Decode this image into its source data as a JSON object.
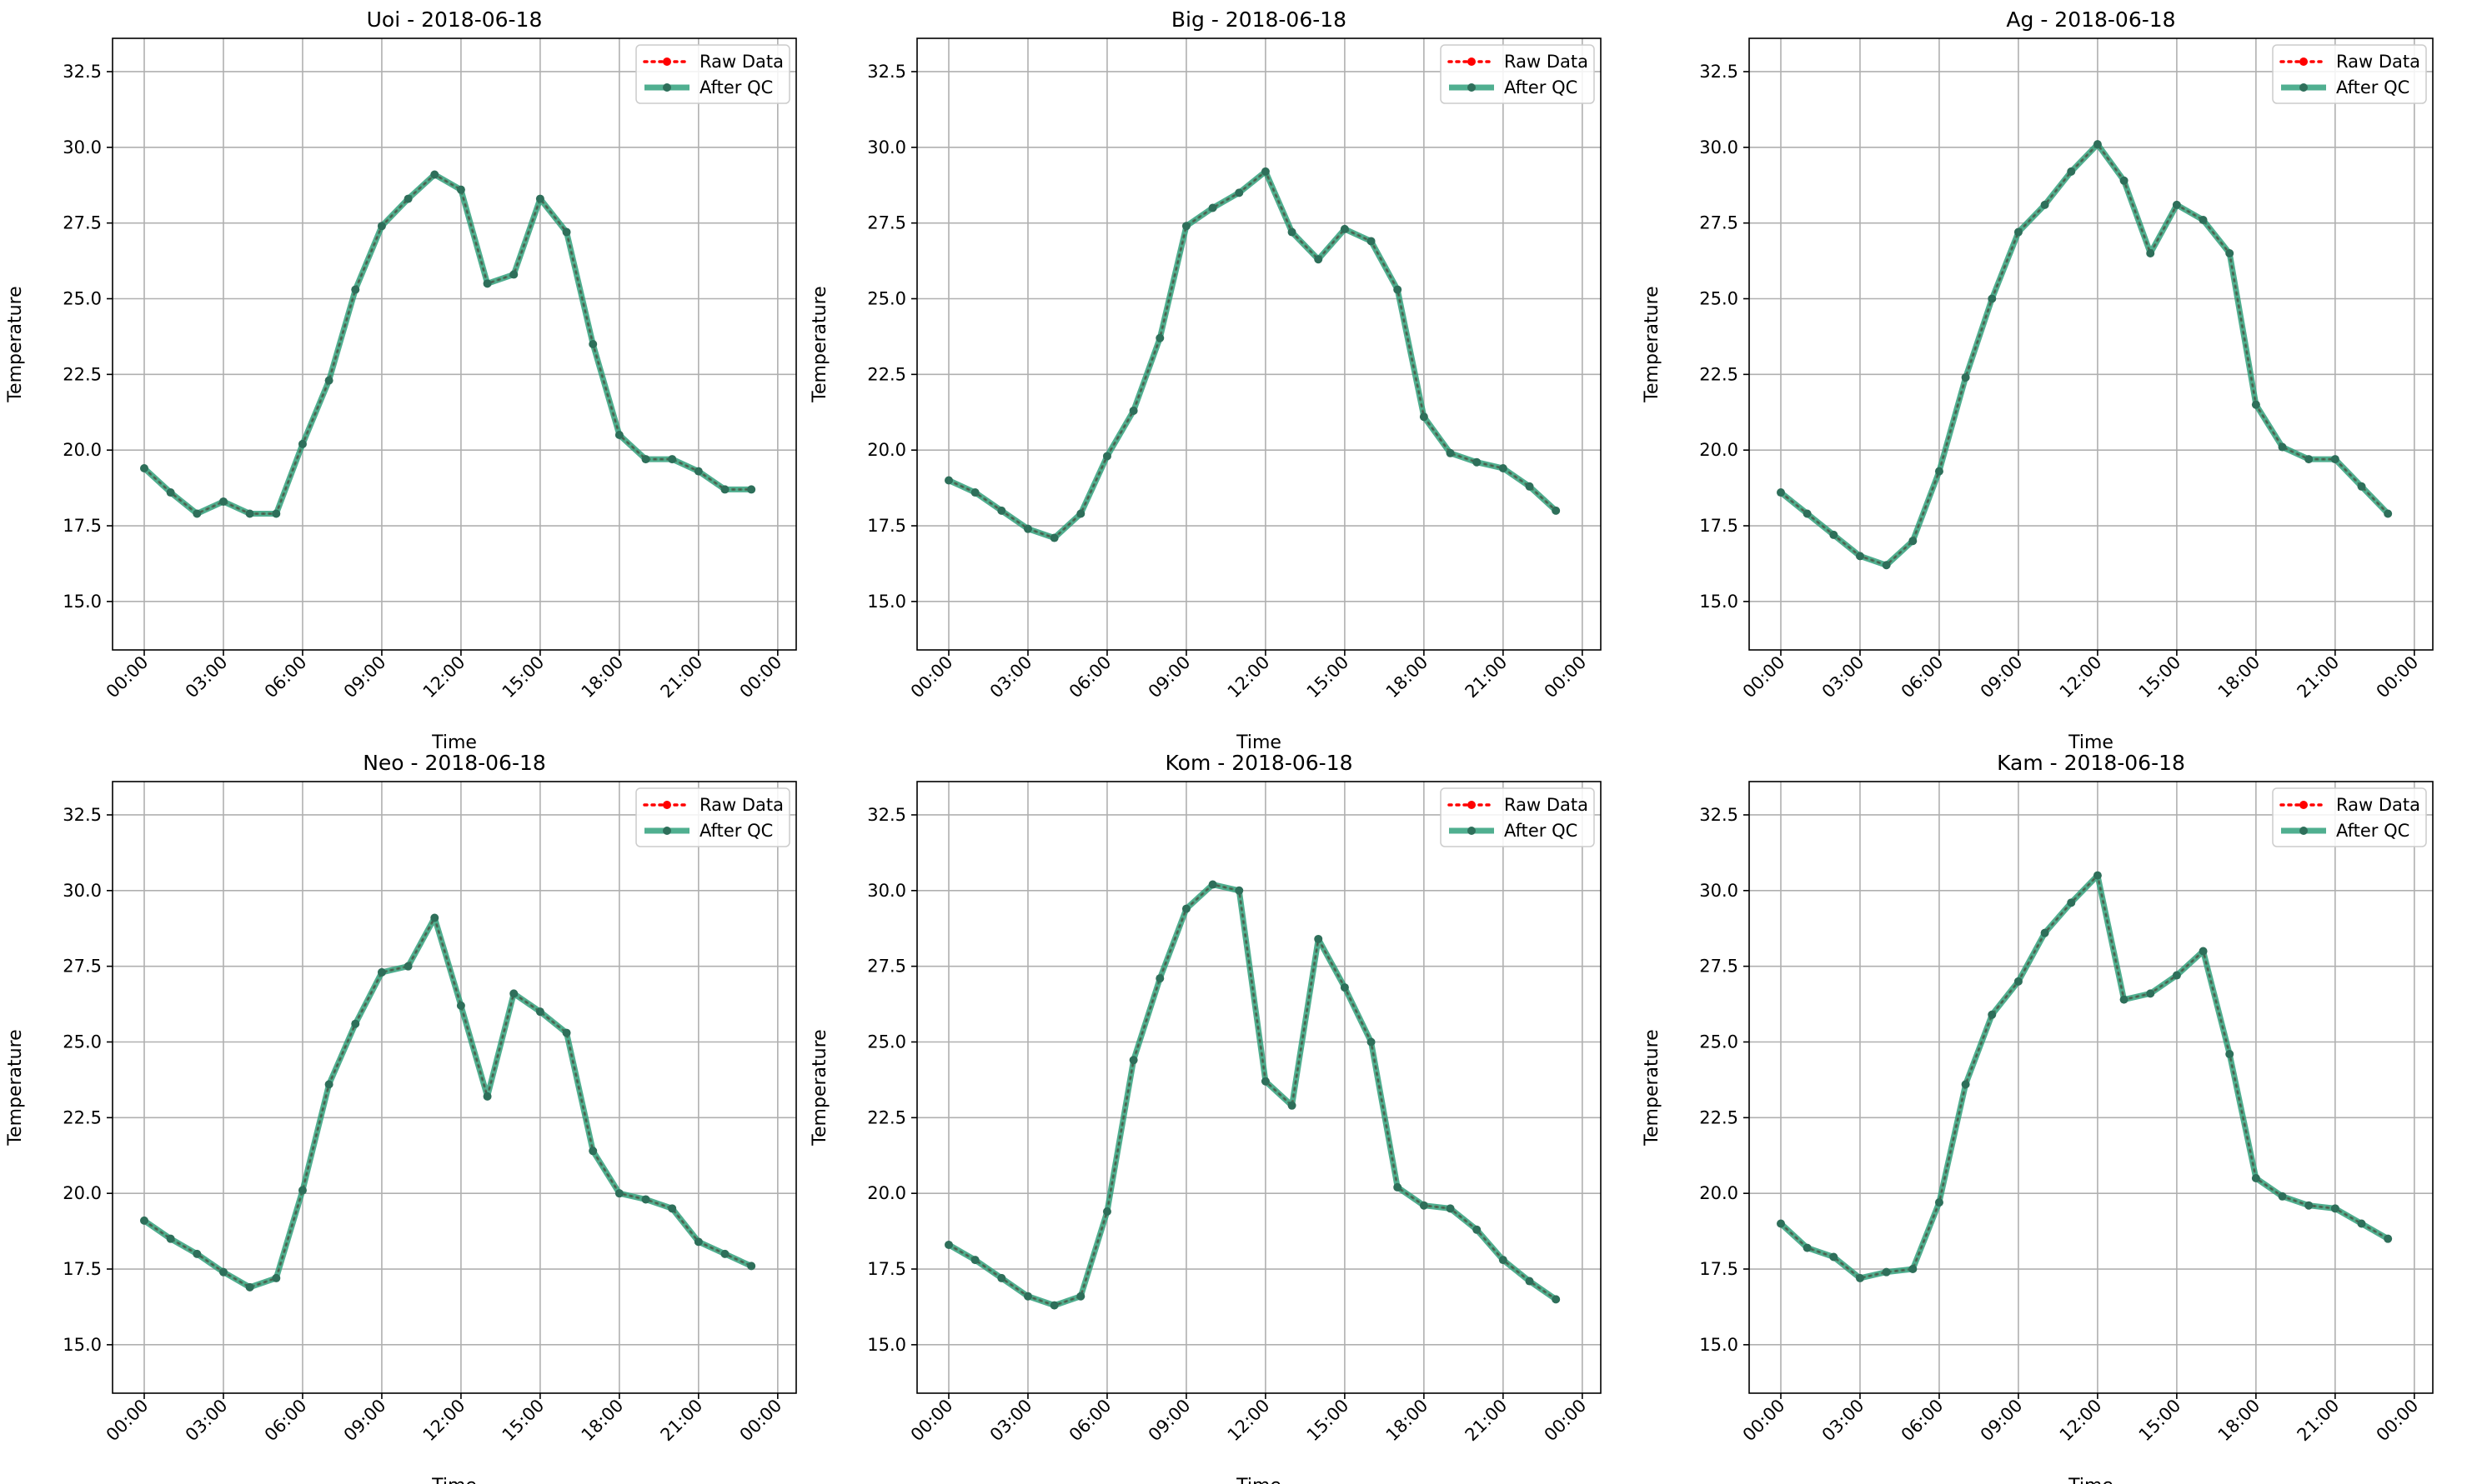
{
  "chart_data": [
    {
      "type": "line",
      "title": "Uoi - 2018-06-18",
      "xlabel": "Time",
      "ylabel": "Temperature",
      "xlim": [
        -1.2,
        24.7
      ],
      "ylim": [
        13.4,
        33.6
      ],
      "x": [
        0,
        1,
        2,
        3,
        4,
        5,
        6,
        7,
        8,
        9,
        10,
        11,
        12,
        13,
        14,
        15,
        16,
        17,
        18,
        19,
        20,
        21,
        22,
        23
      ],
      "x_ticks": [
        0,
        3,
        6,
        9,
        12,
        15,
        18,
        21,
        24
      ],
      "x_tick_labels": [
        "00:00",
        "03:00",
        "06:00",
        "09:00",
        "12:00",
        "15:00",
        "18:00",
        "21:00",
        "00:00"
      ],
      "y_ticks": [
        15.0,
        17.5,
        20.0,
        22.5,
        25.0,
        27.5,
        30.0,
        32.5
      ],
      "y_tick_labels": [
        "15.0",
        "17.5",
        "20.0",
        "22.5",
        "25.0",
        "27.5",
        "30.0",
        "32.5"
      ],
      "grid": true,
      "legend_position": "top-right",
      "series": [
        {
          "name": "Raw Data",
          "color": "#ff0000",
          "style": "dotted",
          "values": [
            19.4,
            18.6,
            17.9,
            18.3,
            17.9,
            17.9,
            20.2,
            22.3,
            25.3,
            27.4,
            28.3,
            29.1,
            28.6,
            25.5,
            25.8,
            28.3,
            27.2,
            23.5,
            20.5,
            19.7,
            19.7,
            19.3,
            18.7,
            18.7
          ]
        },
        {
          "name": "After QC",
          "color": "#2a9d78",
          "style": "solid",
          "values": [
            19.4,
            18.6,
            17.9,
            18.3,
            17.9,
            17.9,
            20.2,
            22.3,
            25.3,
            27.4,
            28.3,
            29.1,
            28.6,
            25.5,
            25.8,
            28.3,
            27.2,
            23.5,
            20.5,
            19.7,
            19.7,
            19.3,
            18.7,
            18.7
          ]
        }
      ]
    },
    {
      "type": "line",
      "title": "Big - 2018-06-18",
      "xlabel": "Time",
      "ylabel": "Temperature",
      "xlim": [
        -1.2,
        24.7
      ],
      "ylim": [
        13.4,
        33.6
      ],
      "x": [
        0,
        1,
        2,
        3,
        4,
        5,
        6,
        7,
        8,
        9,
        10,
        11,
        12,
        13,
        14,
        15,
        16,
        17,
        18,
        19,
        20,
        21,
        22,
        23
      ],
      "x_ticks": [
        0,
        3,
        6,
        9,
        12,
        15,
        18,
        21,
        24
      ],
      "x_tick_labels": [
        "00:00",
        "03:00",
        "06:00",
        "09:00",
        "12:00",
        "15:00",
        "18:00",
        "21:00",
        "00:00"
      ],
      "y_ticks": [
        15.0,
        17.5,
        20.0,
        22.5,
        25.0,
        27.5,
        30.0,
        32.5
      ],
      "y_tick_labels": [
        "15.0",
        "17.5",
        "20.0",
        "22.5",
        "25.0",
        "27.5",
        "30.0",
        "32.5"
      ],
      "grid": true,
      "legend_position": "top-right",
      "series": [
        {
          "name": "Raw Data",
          "color": "#ff0000",
          "style": "dotted",
          "values": [
            19.0,
            18.6,
            18.0,
            17.4,
            17.1,
            17.9,
            19.8,
            21.3,
            23.7,
            27.4,
            28.0,
            28.5,
            29.2,
            27.2,
            26.3,
            27.3,
            26.9,
            25.3,
            21.1,
            19.9,
            19.6,
            19.4,
            18.8,
            18.0
          ]
        },
        {
          "name": "After QC",
          "color": "#2a9d78",
          "style": "solid",
          "values": [
            19.0,
            18.6,
            18.0,
            17.4,
            17.1,
            17.9,
            19.8,
            21.3,
            23.7,
            27.4,
            28.0,
            28.5,
            29.2,
            27.2,
            26.3,
            27.3,
            26.9,
            25.3,
            21.1,
            19.9,
            19.6,
            19.4,
            18.8,
            18.0
          ]
        }
      ]
    },
    {
      "type": "line",
      "title": "Ag - 2018-06-18",
      "xlabel": "Time",
      "ylabel": "Temperature",
      "xlim": [
        -1.2,
        24.7
      ],
      "ylim": [
        13.4,
        33.6
      ],
      "x": [
        0,
        1,
        2,
        3,
        4,
        5,
        6,
        7,
        8,
        9,
        10,
        11,
        12,
        13,
        14,
        15,
        16,
        17,
        18,
        19,
        20,
        21,
        22,
        23
      ],
      "x_ticks": [
        0,
        3,
        6,
        9,
        12,
        15,
        18,
        21,
        24
      ],
      "x_tick_labels": [
        "00:00",
        "03:00",
        "06:00",
        "09:00",
        "12:00",
        "15:00",
        "18:00",
        "21:00",
        "00:00"
      ],
      "y_ticks": [
        15.0,
        17.5,
        20.0,
        22.5,
        25.0,
        27.5,
        30.0,
        32.5
      ],
      "y_tick_labels": [
        "15.0",
        "17.5",
        "20.0",
        "22.5",
        "25.0",
        "27.5",
        "30.0",
        "32.5"
      ],
      "grid": true,
      "legend_position": "top-right",
      "series": [
        {
          "name": "Raw Data",
          "color": "#ff0000",
          "style": "dotted",
          "values": [
            18.6,
            17.9,
            17.2,
            16.5,
            16.2,
            17.0,
            19.3,
            22.4,
            25.0,
            27.2,
            28.1,
            29.2,
            30.1,
            28.9,
            26.5,
            28.1,
            27.6,
            26.5,
            21.5,
            20.1,
            19.7,
            19.7,
            18.8,
            17.9
          ]
        },
        {
          "name": "After QC",
          "color": "#2a9d78",
          "style": "solid",
          "values": [
            18.6,
            17.9,
            17.2,
            16.5,
            16.2,
            17.0,
            19.3,
            22.4,
            25.0,
            27.2,
            28.1,
            29.2,
            30.1,
            28.9,
            26.5,
            28.1,
            27.6,
            26.5,
            21.5,
            20.1,
            19.7,
            19.7,
            18.8,
            17.9
          ]
        }
      ]
    },
    {
      "type": "line",
      "title": "Neo - 2018-06-18",
      "xlabel": "Time",
      "ylabel": "Temperature",
      "xlim": [
        -1.2,
        24.7
      ],
      "ylim": [
        13.4,
        33.6
      ],
      "x": [
        0,
        1,
        2,
        3,
        4,
        5,
        6,
        7,
        8,
        9,
        10,
        11,
        12,
        13,
        14,
        15,
        16,
        17,
        18,
        19,
        20,
        21,
        22,
        23
      ],
      "x_ticks": [
        0,
        3,
        6,
        9,
        12,
        15,
        18,
        21,
        24
      ],
      "x_tick_labels": [
        "00:00",
        "03:00",
        "06:00",
        "09:00",
        "12:00",
        "15:00",
        "18:00",
        "21:00",
        "00:00"
      ],
      "y_ticks": [
        15.0,
        17.5,
        20.0,
        22.5,
        25.0,
        27.5,
        30.0,
        32.5
      ],
      "y_tick_labels": [
        "15.0",
        "17.5",
        "20.0",
        "22.5",
        "25.0",
        "27.5",
        "30.0",
        "32.5"
      ],
      "grid": true,
      "legend_position": "top-right",
      "series": [
        {
          "name": "Raw Data",
          "color": "#ff0000",
          "style": "dotted",
          "values": [
            19.1,
            18.5,
            18.0,
            17.4,
            16.9,
            17.2,
            20.1,
            23.6,
            25.6,
            27.3,
            27.5,
            29.1,
            26.2,
            23.2,
            26.6,
            26.0,
            25.3,
            21.4,
            20.0,
            19.8,
            19.5,
            18.4,
            18.0,
            17.6
          ]
        },
        {
          "name": "After QC",
          "color": "#2a9d78",
          "style": "solid",
          "values": [
            19.1,
            18.5,
            18.0,
            17.4,
            16.9,
            17.2,
            20.1,
            23.6,
            25.6,
            27.3,
            27.5,
            29.1,
            26.2,
            23.2,
            26.6,
            26.0,
            25.3,
            21.4,
            20.0,
            19.8,
            19.5,
            18.4,
            18.0,
            17.6
          ]
        }
      ]
    },
    {
      "type": "line",
      "title": "Kom - 2018-06-18",
      "xlabel": "Time",
      "ylabel": "Temperature",
      "xlim": [
        -1.2,
        24.7
      ],
      "ylim": [
        13.4,
        33.6
      ],
      "x": [
        0,
        1,
        2,
        3,
        4,
        5,
        6,
        7,
        8,
        9,
        10,
        11,
        12,
        13,
        14,
        15,
        16,
        17,
        18,
        19,
        20,
        21,
        22,
        23
      ],
      "x_ticks": [
        0,
        3,
        6,
        9,
        12,
        15,
        18,
        21,
        24
      ],
      "x_tick_labels": [
        "00:00",
        "03:00",
        "06:00",
        "09:00",
        "12:00",
        "15:00",
        "18:00",
        "21:00",
        "00:00"
      ],
      "y_ticks": [
        15.0,
        17.5,
        20.0,
        22.5,
        25.0,
        27.5,
        30.0,
        32.5
      ],
      "y_tick_labels": [
        "15.0",
        "17.5",
        "20.0",
        "22.5",
        "25.0",
        "27.5",
        "30.0",
        "32.5"
      ],
      "grid": true,
      "legend_position": "top-right",
      "series": [
        {
          "name": "Raw Data",
          "color": "#ff0000",
          "style": "dotted",
          "values": [
            18.3,
            17.8,
            17.2,
            16.6,
            16.3,
            16.6,
            19.4,
            24.4,
            27.1,
            29.4,
            30.2,
            30.0,
            23.7,
            22.9,
            28.4,
            26.8,
            25.0,
            20.2,
            19.6,
            19.5,
            18.8,
            17.8,
            17.1,
            16.5
          ]
        },
        {
          "name": "After QC",
          "color": "#2a9d78",
          "style": "solid",
          "values": [
            18.3,
            17.8,
            17.2,
            16.6,
            16.3,
            16.6,
            19.4,
            24.4,
            27.1,
            29.4,
            30.2,
            30.0,
            23.7,
            22.9,
            28.4,
            26.8,
            25.0,
            20.2,
            19.6,
            19.5,
            18.8,
            17.8,
            17.1,
            16.5
          ]
        }
      ]
    },
    {
      "type": "line",
      "title": "Kam - 2018-06-18",
      "xlabel": "Time",
      "ylabel": "Temperature",
      "xlim": [
        -1.2,
        24.7
      ],
      "ylim": [
        13.4,
        33.6
      ],
      "x": [
        0,
        1,
        2,
        3,
        4,
        5,
        6,
        7,
        8,
        9,
        10,
        11,
        12,
        13,
        14,
        15,
        16,
        17,
        18,
        19,
        20,
        21,
        22,
        23
      ],
      "x_ticks": [
        0,
        3,
        6,
        9,
        12,
        15,
        18,
        21,
        24
      ],
      "x_tick_labels": [
        "00:00",
        "03:00",
        "06:00",
        "09:00",
        "12:00",
        "15:00",
        "18:00",
        "21:00",
        "00:00"
      ],
      "y_ticks": [
        15.0,
        17.5,
        20.0,
        22.5,
        25.0,
        27.5,
        30.0,
        32.5
      ],
      "y_tick_labels": [
        "15.0",
        "17.5",
        "20.0",
        "22.5",
        "25.0",
        "27.5",
        "30.0",
        "32.5"
      ],
      "grid": true,
      "legend_position": "top-right",
      "series": [
        {
          "name": "Raw Data",
          "color": "#ff0000",
          "style": "dotted",
          "values": [
            19.0,
            18.2,
            17.9,
            17.2,
            17.4,
            17.5,
            19.7,
            23.6,
            25.9,
            27.0,
            28.6,
            29.6,
            30.5,
            26.4,
            26.6,
            27.2,
            28.0,
            24.6,
            20.5,
            19.9,
            19.6,
            19.5,
            19.0,
            18.5
          ]
        },
        {
          "name": "After QC",
          "color": "#2a9d78",
          "style": "solid",
          "values": [
            19.0,
            18.2,
            17.9,
            17.2,
            17.4,
            17.5,
            19.7,
            23.6,
            25.9,
            27.0,
            28.6,
            29.6,
            30.5,
            26.4,
            26.6,
            27.2,
            28.0,
            24.6,
            20.5,
            19.9,
            19.6,
            19.5,
            19.0,
            18.5
          ]
        }
      ]
    }
  ]
}
